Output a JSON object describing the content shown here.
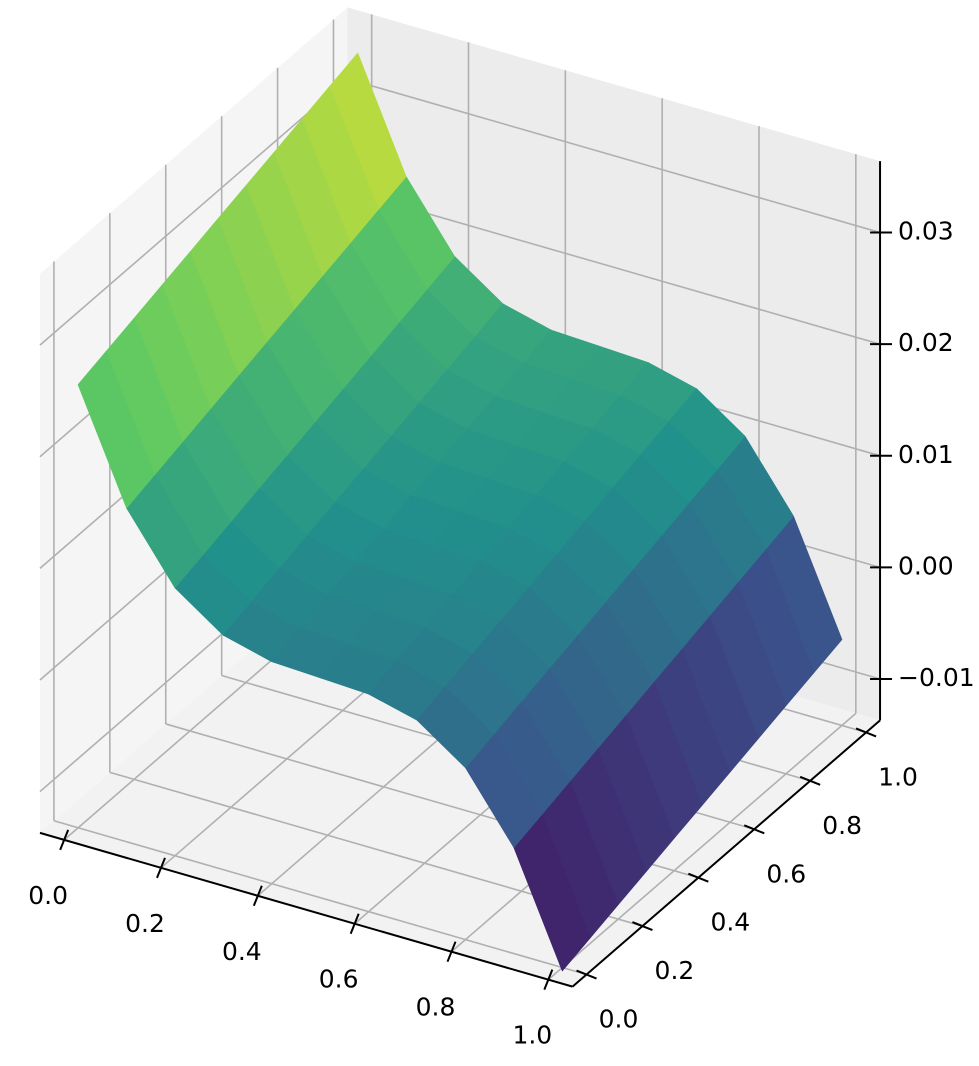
{
  "chart_data": {
    "type": "surface",
    "colormap": "viridis",
    "x": [
      0,
      0.1,
      0.2,
      0.3,
      0.4,
      0.5,
      0.6,
      0.7,
      0.8,
      0.9,
      1
    ],
    "y": [
      0,
      0.1,
      0.2,
      0.3,
      0.4,
      0.5,
      0.6,
      0.7,
      0.8,
      0.9,
      1
    ],
    "z": [
      [
        0.026,
        0.0162,
        0.0103,
        0.0073,
        0.0062,
        0.006,
        0.0058,
        0.0047,
        0.0017,
        -0.0042,
        -0.014
      ],
      [
        0.0268,
        0.017,
        0.0111,
        0.0081,
        0.007,
        0.0068,
        0.0066,
        0.0055,
        0.0025,
        -0.0034,
        -0.0132
      ],
      [
        0.0276,
        0.0178,
        0.0119,
        0.0089,
        0.0078,
        0.0076,
        0.0074,
        0.0063,
        0.0033,
        -0.0026,
        -0.0124
      ],
      [
        0.0284,
        0.0186,
        0.0127,
        0.0097,
        0.0086,
        0.0084,
        0.0082,
        0.0071,
        0.0041,
        -0.0018,
        -0.0116
      ],
      [
        0.0292,
        0.0194,
        0.0135,
        0.0105,
        0.0094,
        0.0092,
        0.009,
        0.0079,
        0.0049,
        -0.001,
        -0.0108
      ],
      [
        0.03,
        0.0202,
        0.0143,
        0.0113,
        0.0102,
        0.01,
        0.0098,
        0.0087,
        0.0057,
        -0.0002,
        -0.01
      ],
      [
        0.0308,
        0.021,
        0.0151,
        0.0121,
        0.011,
        0.0108,
        0.0106,
        0.0095,
        0.0065,
        0.0006,
        -0.0092
      ],
      [
        0.0316,
        0.0218,
        0.0159,
        0.0129,
        0.0118,
        0.0116,
        0.0114,
        0.0103,
        0.0073,
        0.0014,
        -0.0084
      ],
      [
        0.0324,
        0.0226,
        0.0167,
        0.0137,
        0.0126,
        0.0124,
        0.0122,
        0.0111,
        0.0081,
        0.0022,
        -0.0076
      ],
      [
        0.0332,
        0.0234,
        0.0175,
        0.0145,
        0.0134,
        0.0132,
        0.013,
        0.0119,
        0.0089,
        0.003,
        -0.0068
      ],
      [
        0.034,
        0.0242,
        0.0183,
        0.0153,
        0.0142,
        0.014,
        0.0138,
        0.0127,
        0.0097,
        0.0038,
        -0.006
      ]
    ],
    "xlim": [
      -0.05,
      1.05
    ],
    "ylim": [
      -0.05,
      1.05
    ],
    "zlim": [
      -0.0137,
      0.0364
    ],
    "xticks": [
      {
        "value": 0,
        "label": "0.0"
      },
      {
        "value": 0.2,
        "label": "0.2"
      },
      {
        "value": 0.4,
        "label": "0.4"
      },
      {
        "value": 0.6,
        "label": "0.6"
      },
      {
        "value": 0.8,
        "label": "0.8"
      },
      {
        "value": 1,
        "label": "1.0"
      }
    ],
    "yticks": [
      {
        "value": 0,
        "label": "0.0"
      },
      {
        "value": 0.2,
        "label": "0.2"
      },
      {
        "value": 0.4,
        "label": "0.4"
      },
      {
        "value": 0.6,
        "label": "0.6"
      },
      {
        "value": 0.8,
        "label": "0.8"
      },
      {
        "value": 1,
        "label": "1.0"
      }
    ],
    "zticks": [
      {
        "value": -0.01,
        "label": "−0.01"
      },
      {
        "value": 0,
        "label": "0.00"
      },
      0.01,
      0.02,
      0.03
    ],
    "grid": true
  }
}
